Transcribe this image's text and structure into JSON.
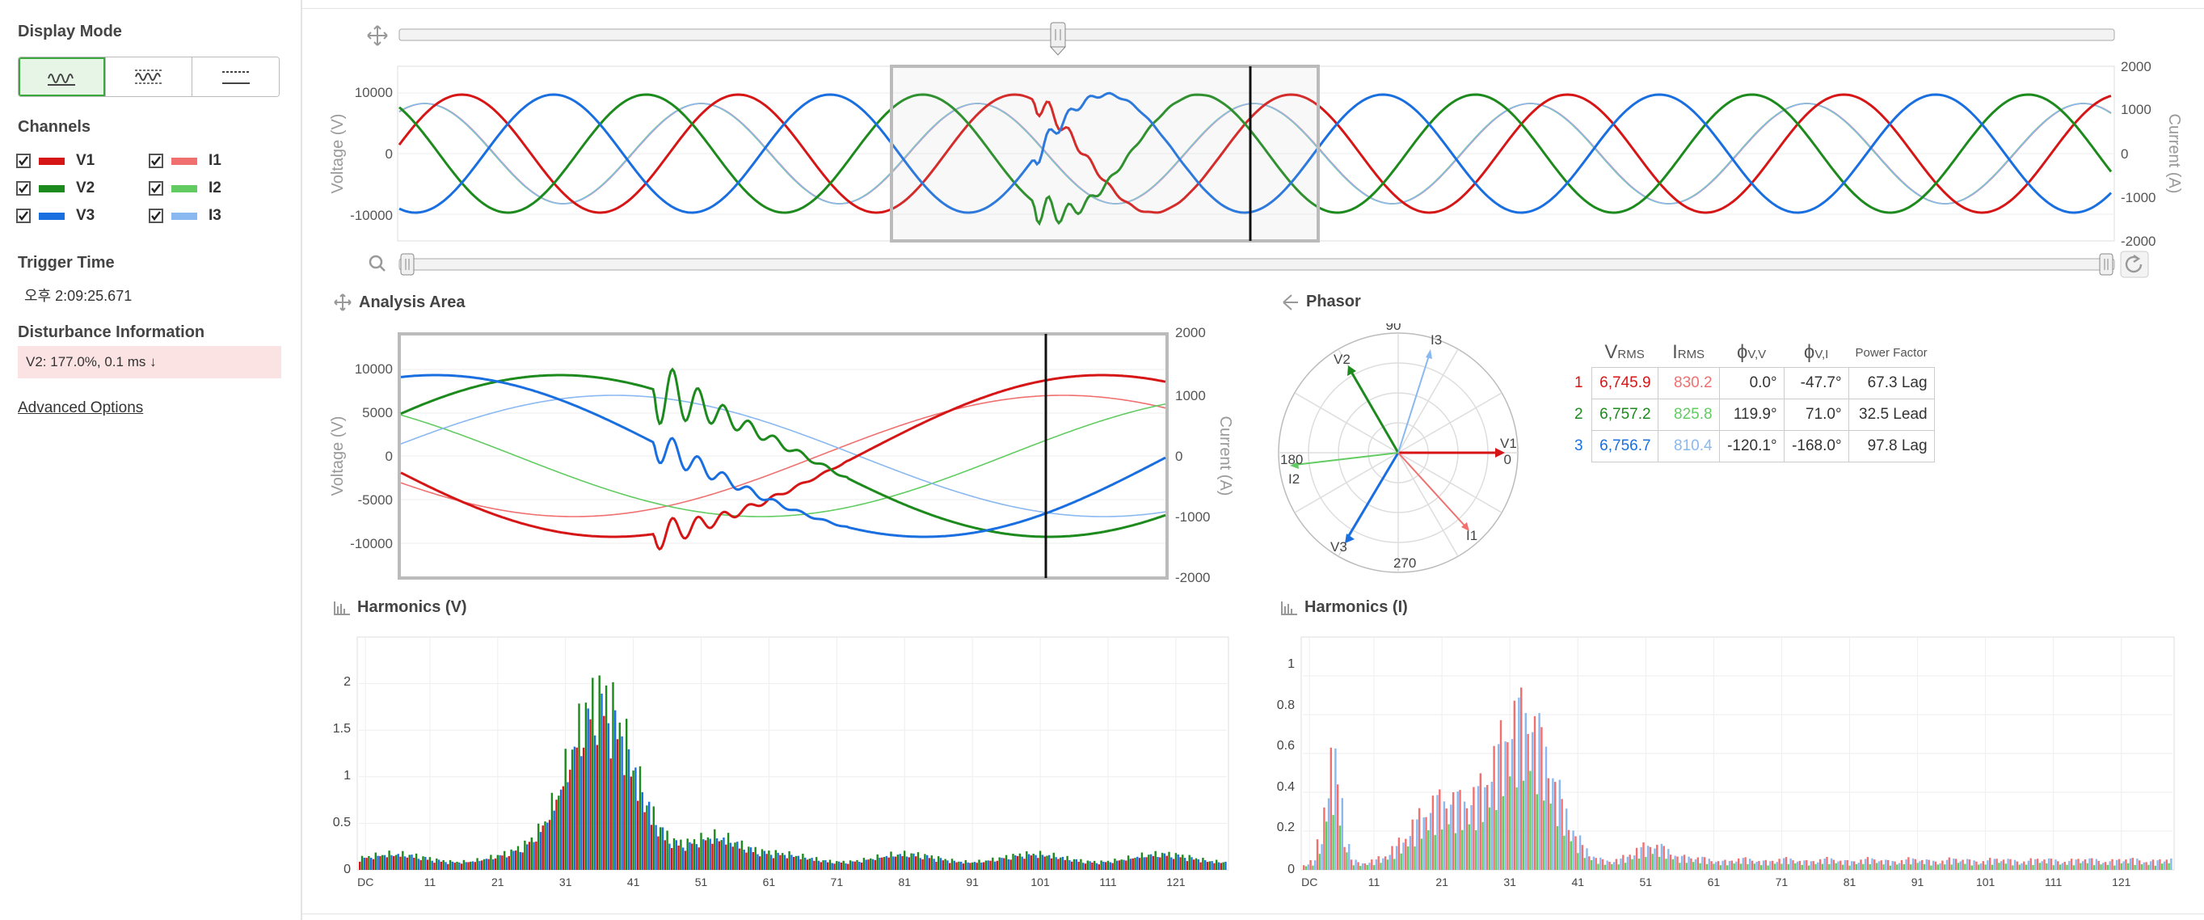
{
  "sidebar": {
    "display_mode_title": "Display Mode",
    "modes": [
      {
        "name": "waveform",
        "active": true
      },
      {
        "name": "rms-waveform",
        "active": false
      },
      {
        "name": "table-view",
        "active": false
      }
    ],
    "channels_title": "Channels",
    "channels": [
      {
        "label": "V1",
        "checked": true,
        "color": "#d61616"
      },
      {
        "label": "V2",
        "checked": true,
        "color": "#1d8a1d"
      },
      {
        "label": "V3",
        "checked": true,
        "color": "#1a6fe0"
      },
      {
        "label": "I1",
        "checked": true,
        "color": "#f07070"
      },
      {
        "label": "I2",
        "checked": true,
        "color": "#62cc62"
      },
      {
        "label": "I3",
        "checked": true,
        "color": "#8ab8f0"
      }
    ],
    "trigger_time_title": "Trigger Time",
    "trigger_time": "오후 2:09:25.671",
    "disturbance_title": "Disturbance Information",
    "disturbance": "V2: 177.0%, 0.1 ms ↓",
    "advanced_options": "Advanced Options"
  },
  "overview": {
    "y_left_label": "Voltage (V)",
    "y_right_label": "Current (A)",
    "y_left_ticks": [
      "10000",
      "0",
      "-10000"
    ],
    "y_right_ticks": [
      "2000",
      "1000",
      "0",
      "-1000",
      "-2000"
    ]
  },
  "analysis": {
    "title": "Analysis Area",
    "y_left_label": "Voltage (V)",
    "y_right_label": "Current (A)",
    "y_left_ticks": [
      "10000",
      "5000",
      "0",
      "-5000",
      "-10000"
    ],
    "y_right_ticks": [
      "2000",
      "1000",
      "0",
      "-1000",
      "-2000"
    ]
  },
  "phasor": {
    "title": "Phasor",
    "angle_labels": {
      "top": "90",
      "left": "180",
      "right": "0",
      "bottom": "270"
    },
    "vector_labels": {
      "V1": "V1",
      "V2": "V2",
      "V3": "V3",
      "I1": "I1",
      "I2": "I2",
      "I3": "I3"
    },
    "table": {
      "headers": {
        "vrms_main": "V",
        "vrms_sub": "RMS",
        "irms_main": "I",
        "irms_sub": "RMS",
        "phivv_main": "ϕ",
        "phivv_sub": "V,V",
        "phivi_main": "ϕ",
        "phivi_sub": "V,I",
        "pf": "Power Factor"
      },
      "rows": [
        {
          "idx": "1",
          "vrms": "6,745.9",
          "irms": "830.2",
          "phivv": "0.0°",
          "phivi": "-47.7°",
          "pf": "67.3 Lag",
          "vcolor": "#d61616",
          "icolor": "#f07070"
        },
        {
          "idx": "2",
          "vrms": "6,757.2",
          "irms": "825.8",
          "phivv": "119.9°",
          "phivi": "71.0°",
          "pf": "32.5 Lead",
          "vcolor": "#1d8a1d",
          "icolor": "#62cc62"
        },
        {
          "idx": "3",
          "vrms": "6,756.7",
          "irms": "810.4",
          "phivv": "-120.1°",
          "phivi": "-168.0°",
          "pf": "97.8 Lag",
          "vcolor": "#1a6fe0",
          "icolor": "#8ab8f0"
        }
      ]
    }
  },
  "harmonics_v": {
    "title": "Harmonics (V)",
    "y_ticks": [
      "2",
      "1.5",
      "1",
      "0.5",
      "0"
    ],
    "x_ticks": [
      "DC",
      "11",
      "21",
      "31",
      "41",
      "51",
      "61",
      "71",
      "81",
      "91",
      "101",
      "111",
      "121"
    ]
  },
  "harmonics_i": {
    "title": "Harmonics (I)",
    "y_ticks": [
      "1",
      "0.8",
      "0.6",
      "0.4",
      "0.2",
      "0"
    ],
    "x_ticks": [
      "DC",
      "11",
      "21",
      "31",
      "41",
      "51",
      "61",
      "71",
      "81",
      "91",
      "101",
      "111",
      "121"
    ]
  }
}
